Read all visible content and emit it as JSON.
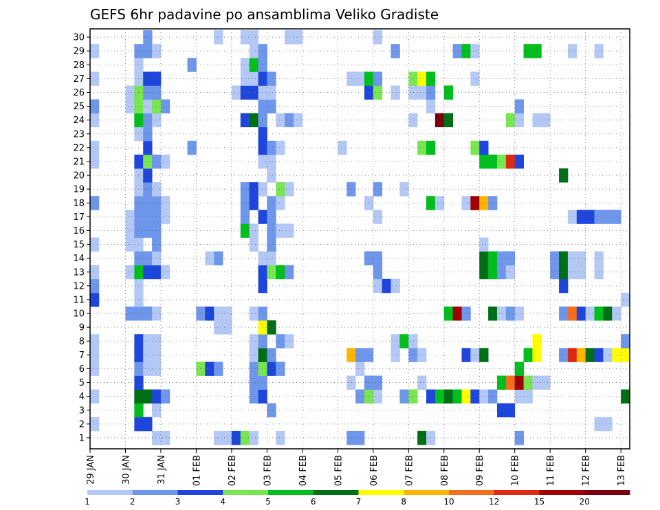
{
  "chart_data": {
    "type": "heatmap",
    "title": "GEFS 6hr padavine po ansamblima Veliko Gradiste",
    "xlabel": "",
    "ylabel": "",
    "y_ticks": [
      "1",
      "2",
      "3",
      "4",
      "5",
      "6",
      "7",
      "8",
      "9",
      "10",
      "11",
      "12",
      "13",
      "14",
      "15",
      "16",
      "17",
      "18",
      "19",
      "20",
      "21",
      "22",
      "23",
      "24",
      "25",
      "26",
      "27",
      "28",
      "29",
      "30"
    ],
    "x_ticks": [
      "29 JAN",
      "30 JAN",
      "31 JAN",
      "01 FEB",
      "02 FEB",
      "03 FEB",
      "04 FEB",
      "05 FEB",
      "06 FEB",
      "07 FEB",
      "08 FEB",
      "09 FEB",
      "10 FEB",
      "11 FEB",
      "12 FEB",
      "13 FEB"
    ],
    "ylim": [
      0,
      30
    ],
    "time_steps": 61,
    "steps_per_day": 4,
    "grid": "dotted",
    "colorbar": {
      "tick_labels": [
        "1",
        "2",
        "3",
        "4",
        "5",
        "6",
        "7",
        "8",
        "10",
        "12",
        "15",
        "20"
      ],
      "colors": [
        "#b4c8f5",
        "#6e96eb",
        "#1e46dc",
        "#78e650",
        "#00be1e",
        "#006e14",
        "#ffff00",
        "#ffb400",
        "#f56e1e",
        "#dc2814",
        "#a00000",
        "#7a0010"
      ]
    },
    "cells": [
      [
        1,
        7,
        1
      ],
      [
        1,
        8,
        1
      ],
      [
        1,
        14,
        1
      ],
      [
        1,
        15,
        1
      ],
      [
        1,
        16,
        3
      ],
      [
        1,
        17,
        4
      ],
      [
        1,
        18,
        1
      ],
      [
        1,
        21,
        1
      ],
      [
        1,
        29,
        2
      ],
      [
        1,
        30,
        2
      ],
      [
        1,
        37,
        6
      ],
      [
        1,
        38,
        1
      ],
      [
        1,
        48,
        2
      ],
      [
        2,
        0,
        1
      ],
      [
        2,
        5,
        3
      ],
      [
        2,
        6,
        3
      ],
      [
        2,
        57,
        1
      ],
      [
        2,
        58,
        1
      ],
      [
        3,
        5,
        5
      ],
      [
        3,
        7,
        1
      ],
      [
        3,
        20,
        2
      ],
      [
        3,
        46,
        3
      ],
      [
        3,
        47,
        3
      ],
      [
        4,
        0,
        1
      ],
      [
        4,
        5,
        6
      ],
      [
        4,
        6,
        6
      ],
      [
        4,
        7,
        3
      ],
      [
        4,
        8,
        2
      ],
      [
        4,
        18,
        2
      ],
      [
        4,
        19,
        3
      ],
      [
        4,
        30,
        2
      ],
      [
        4,
        31,
        4
      ],
      [
        4,
        32,
        1
      ],
      [
        4,
        35,
        2
      ],
      [
        4,
        36,
        4
      ],
      [
        4,
        38,
        3
      ],
      [
        4,
        39,
        5
      ],
      [
        4,
        40,
        6
      ],
      [
        4,
        41,
        5
      ],
      [
        4,
        42,
        7
      ],
      [
        4,
        43,
        3
      ],
      [
        4,
        44,
        1
      ],
      [
        4,
        45,
        2
      ],
      [
        4,
        48,
        1
      ],
      [
        4,
        49,
        1
      ],
      [
        4,
        60,
        6
      ],
      [
        5,
        5,
        3
      ],
      [
        5,
        18,
        2
      ],
      [
        5,
        19,
        2
      ],
      [
        5,
        29,
        1
      ],
      [
        5,
        31,
        2
      ],
      [
        5,
        32,
        2
      ],
      [
        5,
        37,
        1
      ],
      [
        5,
        46,
        5
      ],
      [
        5,
        47,
        9
      ],
      [
        5,
        48,
        11
      ],
      [
        5,
        49,
        4
      ],
      [
        5,
        50,
        1
      ],
      [
        5,
        51,
        1
      ],
      [
        6,
        0,
        1
      ],
      [
        6,
        5,
        2
      ],
      [
        6,
        6,
        1
      ],
      [
        6,
        7,
        1
      ],
      [
        6,
        12,
        4
      ],
      [
        6,
        13,
        3
      ],
      [
        6,
        14,
        2
      ],
      [
        6,
        18,
        2
      ],
      [
        6,
        19,
        4
      ],
      [
        6,
        20,
        3
      ],
      [
        6,
        21,
        2
      ],
      [
        6,
        30,
        1
      ],
      [
        6,
        48,
        5
      ],
      [
        7,
        0,
        1
      ],
      [
        7,
        5,
        3
      ],
      [
        7,
        6,
        1
      ],
      [
        7,
        7,
        1
      ],
      [
        7,
        18,
        1
      ],
      [
        7,
        19,
        6
      ],
      [
        7,
        20,
        2
      ],
      [
        7,
        29,
        8
      ],
      [
        7,
        30,
        2
      ],
      [
        7,
        31,
        2
      ],
      [
        7,
        34,
        1
      ],
      [
        7,
        36,
        2
      ],
      [
        7,
        37,
        1
      ],
      [
        7,
        42,
        3
      ],
      [
        7,
        43,
        1
      ],
      [
        7,
        44,
        6
      ],
      [
        7,
        49,
        5
      ],
      [
        7,
        50,
        7
      ],
      [
        7,
        53,
        2
      ],
      [
        7,
        54,
        10
      ],
      [
        7,
        55,
        8
      ],
      [
        7,
        56,
        6
      ],
      [
        7,
        57,
        3
      ],
      [
        7,
        58,
        1
      ],
      [
        7,
        59,
        7
      ],
      [
        7,
        60,
        7
      ],
      [
        8,
        0,
        1
      ],
      [
        8,
        5,
        3
      ],
      [
        8,
        6,
        1
      ],
      [
        8,
        7,
        1
      ],
      [
        8,
        18,
        1
      ],
      [
        8,
        19,
        2
      ],
      [
        8,
        21,
        2
      ],
      [
        8,
        22,
        1
      ],
      [
        8,
        34,
        1
      ],
      [
        8,
        35,
        5
      ],
      [
        8,
        36,
        1
      ],
      [
        8,
        50,
        7
      ],
      [
        8,
        60,
        2
      ],
      [
        9,
        14,
        1
      ],
      [
        9,
        15,
        1
      ],
      [
        9,
        19,
        7
      ],
      [
        9,
        20,
        6
      ],
      [
        10,
        4,
        2
      ],
      [
        10,
        5,
        2
      ],
      [
        10,
        6,
        2
      ],
      [
        10,
        7,
        1
      ],
      [
        10,
        12,
        2
      ],
      [
        10,
        13,
        3
      ],
      [
        10,
        14,
        1
      ],
      [
        10,
        15,
        1
      ],
      [
        10,
        18,
        1
      ],
      [
        10,
        19,
        2
      ],
      [
        10,
        40,
        5
      ],
      [
        10,
        41,
        11
      ],
      [
        10,
        42,
        2
      ],
      [
        10,
        45,
        6
      ],
      [
        10,
        46,
        1
      ],
      [
        10,
        47,
        2
      ],
      [
        10,
        48,
        1
      ],
      [
        10,
        53,
        2
      ],
      [
        10,
        54,
        9
      ],
      [
        10,
        55,
        3
      ],
      [
        10,
        56,
        1
      ],
      [
        10,
        57,
        5
      ],
      [
        10,
        58,
        6
      ],
      [
        10,
        59,
        1
      ],
      [
        11,
        0,
        3
      ],
      [
        11,
        5,
        1
      ],
      [
        11,
        60,
        1
      ],
      [
        12,
        0,
        2
      ],
      [
        12,
        5,
        1
      ],
      [
        12,
        19,
        3
      ],
      [
        12,
        32,
        1
      ],
      [
        12,
        33,
        3
      ],
      [
        12,
        34,
        1
      ],
      [
        12,
        53,
        3
      ],
      [
        13,
        0,
        1
      ],
      [
        13,
        4,
        1
      ],
      [
        13,
        5,
        5
      ],
      [
        13,
        6,
        3
      ],
      [
        13,
        7,
        3
      ],
      [
        13,
        8,
        1
      ],
      [
        13,
        19,
        3
      ],
      [
        13,
        20,
        4
      ],
      [
        13,
        21,
        5
      ],
      [
        13,
        22,
        2
      ],
      [
        13,
        32,
        2
      ],
      [
        13,
        44,
        6
      ],
      [
        13,
        45,
        5
      ],
      [
        13,
        46,
        2
      ],
      [
        13,
        47,
        1
      ],
      [
        13,
        52,
        2
      ],
      [
        13,
        53,
        6
      ],
      [
        13,
        54,
        1
      ],
      [
        13,
        55,
        1
      ],
      [
        13,
        57,
        1
      ],
      [
        14,
        5,
        2
      ],
      [
        14,
        6,
        2
      ],
      [
        14,
        7,
        1
      ],
      [
        14,
        13,
        1
      ],
      [
        14,
        14,
        2
      ],
      [
        14,
        19,
        1
      ],
      [
        14,
        20,
        1
      ],
      [
        14,
        31,
        2
      ],
      [
        14,
        32,
        2
      ],
      [
        14,
        44,
        6
      ],
      [
        14,
        45,
        5
      ],
      [
        14,
        46,
        2
      ],
      [
        14,
        47,
        2
      ],
      [
        14,
        52,
        2
      ],
      [
        14,
        53,
        6
      ],
      [
        14,
        54,
        1
      ],
      [
        14,
        55,
        1
      ],
      [
        14,
        57,
        1
      ],
      [
        15,
        0,
        1
      ],
      [
        15,
        4,
        1
      ],
      [
        15,
        5,
        1
      ],
      [
        15,
        7,
        2
      ],
      [
        15,
        18,
        1
      ],
      [
        15,
        20,
        2
      ],
      [
        15,
        44,
        1
      ],
      [
        16,
        4,
        1
      ],
      [
        16,
        5,
        2
      ],
      [
        16,
        6,
        2
      ],
      [
        16,
        7,
        2
      ],
      [
        16,
        17,
        5
      ],
      [
        16,
        18,
        1
      ],
      [
        16,
        20,
        2
      ],
      [
        16,
        21,
        1
      ],
      [
        16,
        22,
        1
      ],
      [
        17,
        4,
        1
      ],
      [
        17,
        5,
        2
      ],
      [
        17,
        6,
        2
      ],
      [
        17,
        7,
        2
      ],
      [
        17,
        8,
        1
      ],
      [
        17,
        17,
        2
      ],
      [
        17,
        19,
        3
      ],
      [
        17,
        20,
        2
      ],
      [
        17,
        32,
        1
      ],
      [
        17,
        54,
        1
      ],
      [
        17,
        55,
        3
      ],
      [
        17,
        56,
        3
      ],
      [
        17,
        57,
        2
      ],
      [
        17,
        58,
        2
      ],
      [
        17,
        59,
        2
      ],
      [
        18,
        0,
        2
      ],
      [
        18,
        5,
        2
      ],
      [
        18,
        6,
        2
      ],
      [
        18,
        7,
        2
      ],
      [
        18,
        8,
        1
      ],
      [
        18,
        17,
        2
      ],
      [
        18,
        18,
        3
      ],
      [
        18,
        20,
        2
      ],
      [
        18,
        21,
        1
      ],
      [
        18,
        31,
        1
      ],
      [
        18,
        38,
        5
      ],
      [
        18,
        39,
        1
      ],
      [
        18,
        42,
        1
      ],
      [
        18,
        43,
        11
      ],
      [
        18,
        44,
        8
      ],
      [
        18,
        45,
        2
      ],
      [
        19,
        5,
        1
      ],
      [
        19,
        6,
        2
      ],
      [
        19,
        7,
        1
      ],
      [
        19,
        17,
        2
      ],
      [
        19,
        18,
        3
      ],
      [
        19,
        19,
        1
      ],
      [
        19,
        21,
        4
      ],
      [
        19,
        22,
        1
      ],
      [
        19,
        29,
        2
      ],
      [
        19,
        32,
        2
      ],
      [
        19,
        35,
        1
      ],
      [
        20,
        5,
        1
      ],
      [
        20,
        6,
        3
      ],
      [
        20,
        20,
        1
      ],
      [
        20,
        53,
        6
      ],
      [
        21,
        0,
        1
      ],
      [
        21,
        5,
        3
      ],
      [
        21,
        6,
        4
      ],
      [
        21,
        7,
        2
      ],
      [
        21,
        8,
        1
      ],
      [
        21,
        19,
        1
      ],
      [
        21,
        20,
        1
      ],
      [
        21,
        44,
        5
      ],
      [
        21,
        45,
        5
      ],
      [
        21,
        46,
        4
      ],
      [
        21,
        47,
        10
      ],
      [
        21,
        48,
        3
      ],
      [
        22,
        0,
        1
      ],
      [
        22,
        6,
        3
      ],
      [
        22,
        11,
        2
      ],
      [
        22,
        19,
        3
      ],
      [
        22,
        20,
        2
      ],
      [
        22,
        21,
        1
      ],
      [
        22,
        28,
        1
      ],
      [
        22,
        37,
        4
      ],
      [
        22,
        38,
        5
      ],
      [
        22,
        43,
        4
      ],
      [
        22,
        44,
        3
      ],
      [
        23,
        5,
        1
      ],
      [
        23,
        6,
        2
      ],
      [
        23,
        19,
        3
      ],
      [
        24,
        0,
        1
      ],
      [
        24,
        5,
        5
      ],
      [
        24,
        6,
        2
      ],
      [
        24,
        7,
        1
      ],
      [
        24,
        17,
        3
      ],
      [
        24,
        18,
        6
      ],
      [
        24,
        19,
        2
      ],
      [
        24,
        21,
        1
      ],
      [
        24,
        22,
        2
      ],
      [
        24,
        23,
        1
      ],
      [
        24,
        36,
        1
      ],
      [
        24,
        39,
        12
      ],
      [
        24,
        40,
        6
      ],
      [
        24,
        47,
        4
      ],
      [
        24,
        48,
        1
      ],
      [
        24,
        50,
        1
      ],
      [
        24,
        51,
        1
      ],
      [
        25,
        0,
        2
      ],
      [
        25,
        4,
        1
      ],
      [
        25,
        5,
        4
      ],
      [
        25,
        6,
        1
      ],
      [
        25,
        7,
        4
      ],
      [
        25,
        8,
        2
      ],
      [
        25,
        19,
        2
      ],
      [
        25,
        20,
        2
      ],
      [
        25,
        38,
        1
      ],
      [
        25,
        48,
        2
      ],
      [
        26,
        4,
        1
      ],
      [
        26,
        5,
        4
      ],
      [
        26,
        6,
        2
      ],
      [
        26,
        7,
        2
      ],
      [
        26,
        16,
        1
      ],
      [
        26,
        17,
        3
      ],
      [
        26,
        18,
        3
      ],
      [
        26,
        19,
        1
      ],
      [
        26,
        20,
        1
      ],
      [
        26,
        31,
        3
      ],
      [
        26,
        32,
        4
      ],
      [
        26,
        34,
        1
      ],
      [
        26,
        36,
        1
      ],
      [
        26,
        37,
        1
      ],
      [
        26,
        38,
        2
      ],
      [
        26,
        40,
        5
      ],
      [
        27,
        0,
        1
      ],
      [
        27,
        5,
        1
      ],
      [
        27,
        6,
        3
      ],
      [
        27,
        7,
        3
      ],
      [
        27,
        17,
        1
      ],
      [
        27,
        18,
        1
      ],
      [
        27,
        19,
        3
      ],
      [
        27,
        20,
        2
      ],
      [
        27,
        29,
        1
      ],
      [
        27,
        30,
        1
      ],
      [
        27,
        31,
        5
      ],
      [
        27,
        32,
        2
      ],
      [
        27,
        36,
        4
      ],
      [
        27,
        37,
        7
      ],
      [
        27,
        38,
        5
      ],
      [
        27,
        43,
        1
      ],
      [
        28,
        5,
        1
      ],
      [
        28,
        11,
        2
      ],
      [
        28,
        17,
        1
      ],
      [
        28,
        18,
        5
      ],
      [
        28,
        19,
        2
      ],
      [
        29,
        0,
        1
      ],
      [
        29,
        5,
        2
      ],
      [
        29,
        6,
        2
      ],
      [
        29,
        7,
        1
      ],
      [
        29,
        18,
        1
      ],
      [
        29,
        19,
        2
      ],
      [
        29,
        34,
        2
      ],
      [
        29,
        41,
        2
      ],
      [
        29,
        42,
        5
      ],
      [
        29,
        43,
        1
      ],
      [
        29,
        49,
        5
      ],
      [
        29,
        50,
        5
      ],
      [
        29,
        54,
        1
      ],
      [
        29,
        57,
        1
      ],
      [
        30,
        6,
        2
      ],
      [
        30,
        14,
        1
      ],
      [
        30,
        17,
        1
      ],
      [
        30,
        18,
        1
      ],
      [
        30,
        22,
        1
      ],
      [
        30,
        23,
        1
      ],
      [
        30,
        32,
        1
      ]
    ]
  }
}
